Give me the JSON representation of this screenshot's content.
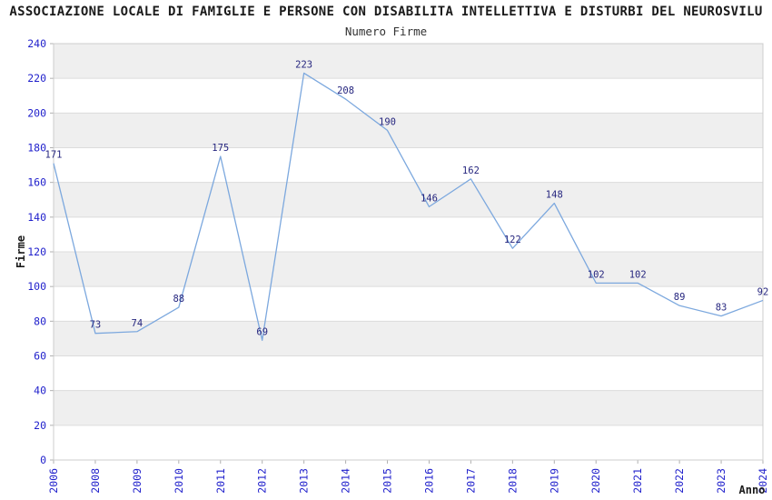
{
  "header": {
    "title": "ASSOCIAZIONE LOCALE DI FAMIGLIE E PERSONE CON DISABILITA INTELLETTIVA E DISTURBI DEL NEUROSVILU",
    "subtitle": "Numero Firme"
  },
  "chart_data": {
    "type": "line",
    "title": "ASSOCIAZIONE LOCALE DI FAMIGLIE E PERSONE CON DISABILITA INTELLETTIVA E DISTURBI DEL NEUROSVILU",
    "subtitle": "Numero Firme",
    "xlabel": "Anno",
    "ylabel": "Firme",
    "categories": [
      "2006",
      "2008",
      "2009",
      "2010",
      "2011",
      "2012",
      "2013",
      "2014",
      "2015",
      "2016",
      "2017",
      "2018",
      "2019",
      "2020",
      "2021",
      "2022",
      "2023",
      "2024"
    ],
    "values": [
      171,
      73,
      74,
      88,
      175,
      69,
      223,
      208,
      190,
      146,
      162,
      122,
      148,
      102,
      102,
      89,
      83,
      92
    ],
    "ylim": [
      0,
      240
    ],
    "ytick_step": 20,
    "grid": true,
    "band_rows": true,
    "legend": "none",
    "colors": {
      "line": "#7CA8DE",
      "axis_tick_label": "#2222CC",
      "point_label": "#26267F",
      "band_fill": "#EFEFEF",
      "gridline": "#DCDCDC",
      "plot_border": "#CCCCCC",
      "tick_mark": "#B0B0B0",
      "text": "#1A1A1A"
    }
  }
}
